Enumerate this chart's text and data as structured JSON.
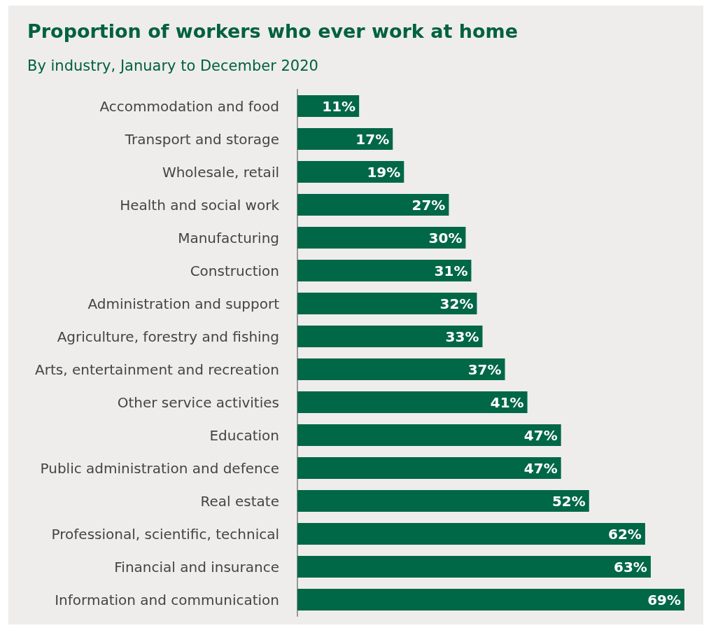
{
  "chart_data": {
    "type": "bar",
    "orientation": "horizontal",
    "title": "Proportion of workers who ever work at home",
    "subtitle": "By industry, January to December 2020",
    "categories": [
      "Accommodation and food",
      "Transport and storage",
      "Wholesale, retail",
      "Health and social work",
      "Manufacturing",
      "Construction",
      "Administration and support",
      "Agriculture, forestry and fishing",
      "Arts, entertainment and recreation",
      "Other service activities",
      "Education",
      "Public administration and defence",
      "Real estate",
      "Professional, scientific, technical",
      "Financial and insurance",
      "Information and communication"
    ],
    "values": [
      11,
      17,
      19,
      27,
      30,
      31,
      32,
      33,
      37,
      41,
      47,
      47,
      52,
      62,
      63,
      69
    ],
    "value_labels": [
      "11%",
      "17%",
      "19%",
      "27%",
      "30%",
      "31%",
      "32%",
      "33%",
      "37%",
      "41%",
      "47%",
      "47%",
      "52%",
      "62%",
      "63%",
      "69%"
    ],
    "color": "#006747"
  }
}
